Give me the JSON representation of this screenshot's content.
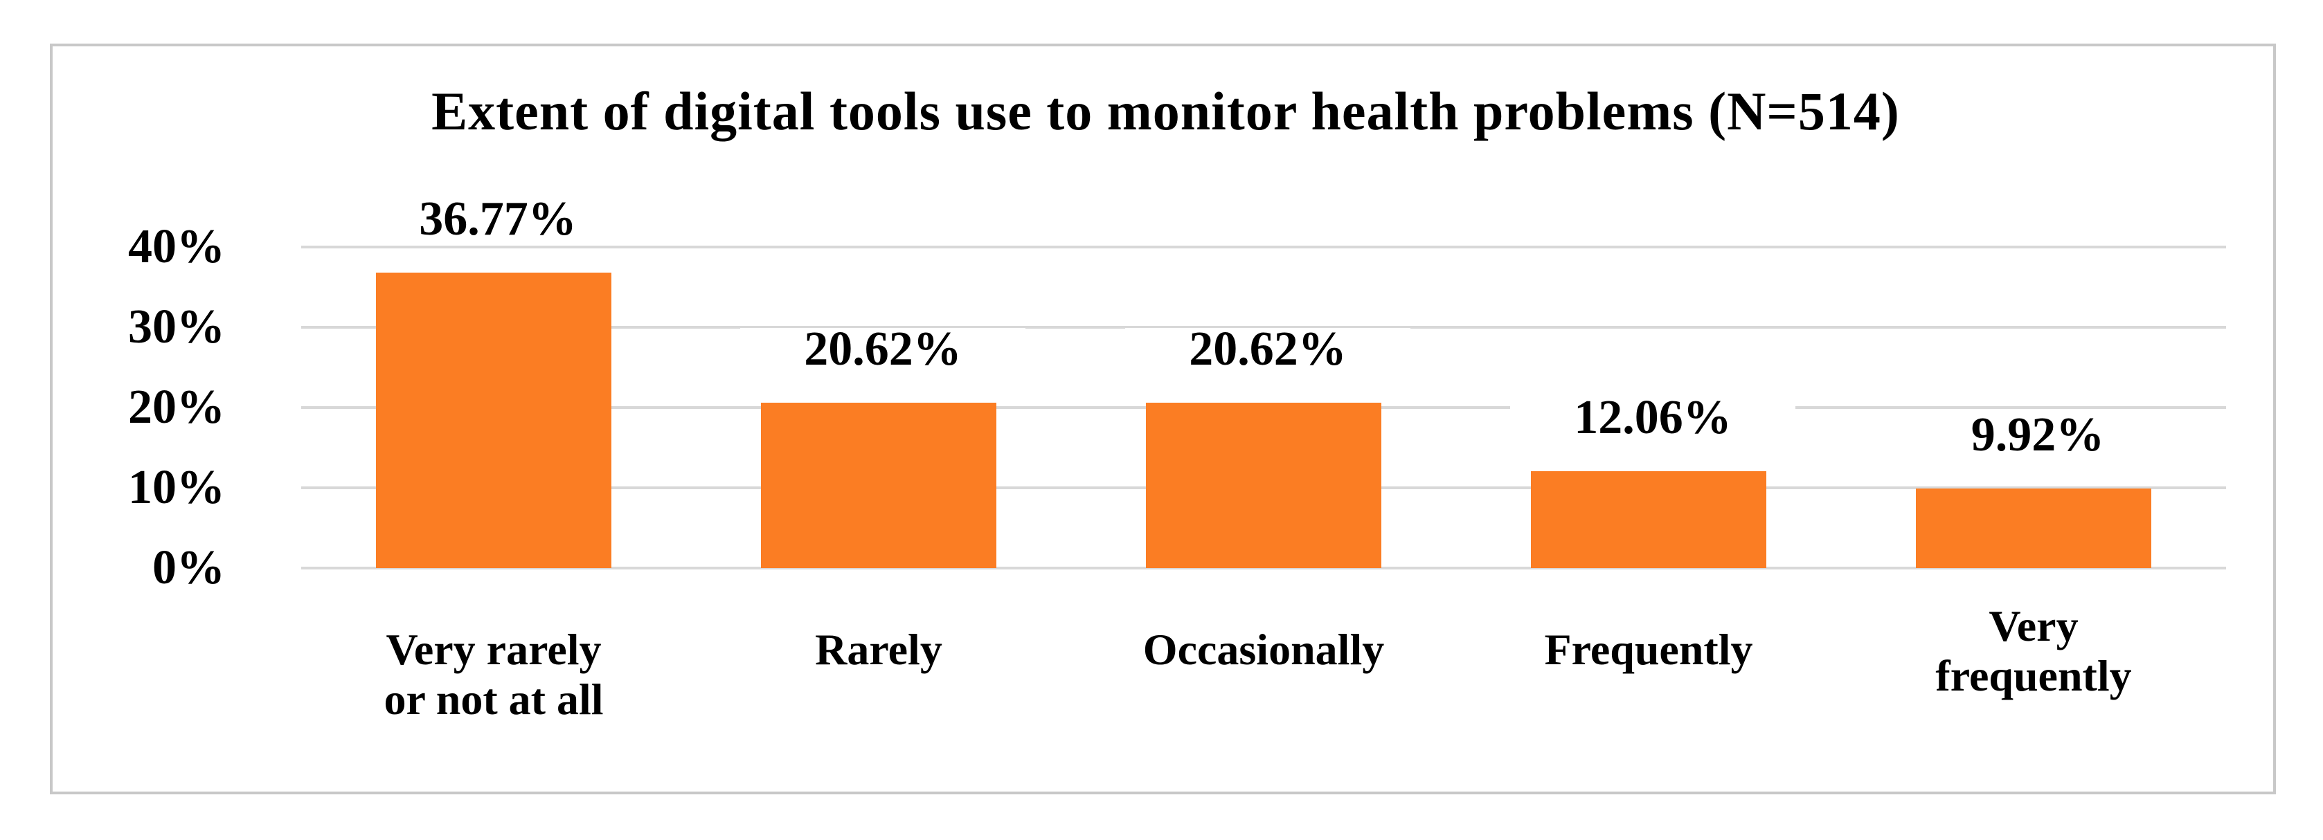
{
  "chart_data": {
    "type": "bar",
    "title": "Extent of digital tools use to monitor health problems (N=514)",
    "categories": [
      "Very rarely\nor not at all",
      "Rarely",
      "Occasionally",
      "Frequently",
      "Very\nfrequently"
    ],
    "values": [
      36.77,
      20.62,
      20.62,
      12.06,
      9.92
    ],
    "data_labels": [
      "36.77%",
      "20.62%",
      "20.62%",
      "12.06%",
      "9.92%"
    ],
    "yticks": [
      {
        "value": 40,
        "label": "40%"
      },
      {
        "value": 30,
        "label": "30%"
      },
      {
        "value": 20,
        "label": "20%"
      },
      {
        "value": 10,
        "label": "10%"
      },
      {
        "value": 0,
        "label": "0%"
      }
    ],
    "ylim": [
      0,
      40
    ],
    "xlabel": "",
    "ylabel": "",
    "grid": true,
    "legend": false,
    "colors": {
      "bar": "#fb7d23",
      "gridline": "#d8d8d8",
      "frame_border": "#c8c8c8",
      "text": "#000000",
      "background": "#ffffff"
    }
  }
}
